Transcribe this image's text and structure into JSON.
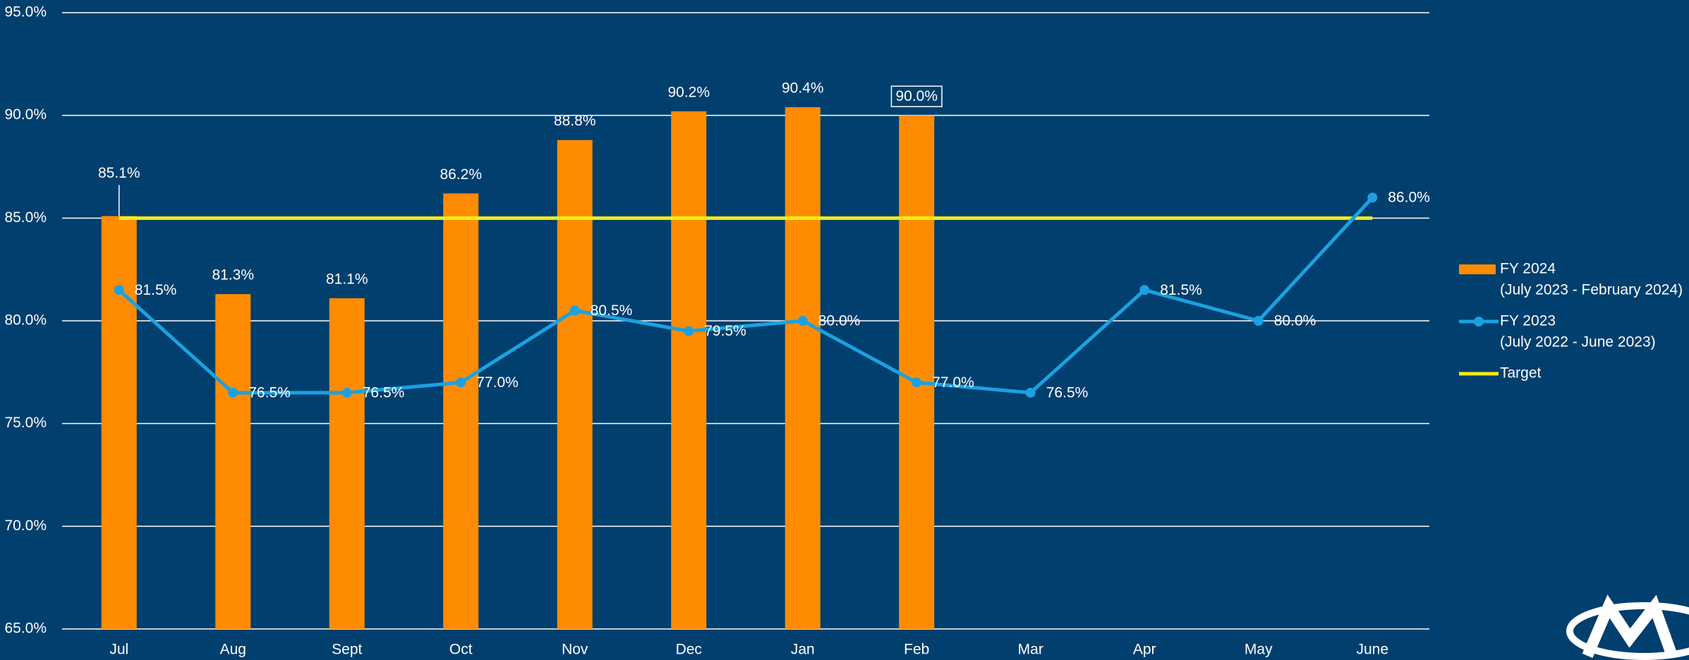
{
  "chart_data": {
    "type": "bar",
    "categories": [
      "Jul",
      "Aug",
      "Sept",
      "Oct",
      "Nov",
      "Dec",
      "Jan",
      "Feb",
      "Mar",
      "Apr",
      "May",
      "June"
    ],
    "series": [
      {
        "name": "FY 2024",
        "period": "(July 2023 - February 2024)",
        "type": "bar",
        "color": "#ff8c00",
        "values": [
          85.1,
          81.3,
          81.1,
          86.2,
          88.8,
          90.2,
          90.4,
          90.0,
          null,
          null,
          null,
          null
        ],
        "value_labels": [
          "85.1%",
          "81.3%",
          "81.1%",
          "86.2%",
          "88.8%",
          "90.2%",
          "90.4%",
          "90.0%",
          null,
          null,
          null,
          null
        ]
      },
      {
        "name": "FY 2023",
        "period": "(July 2022 - June 2023)",
        "type": "line",
        "color": "#1ba1e2",
        "values": [
          81.5,
          76.5,
          76.5,
          77.0,
          80.5,
          79.5,
          80.0,
          77.0,
          76.5,
          81.5,
          80.0,
          86.0
        ],
        "value_labels": [
          "81.5%",
          "76.5%",
          "76.5%",
          "77.0%",
          "80.5%",
          "79.5%",
          "80.0%",
          "77.0%",
          "76.5%",
          "81.5%",
          "80.0%",
          "86.0%"
        ]
      },
      {
        "name": "Target",
        "type": "target",
        "color": "#f5eb1a",
        "values": [
          85,
          85,
          85,
          85,
          85,
          85,
          85,
          85,
          85,
          85,
          85,
          85
        ]
      }
    ],
    "ylim": [
      65,
      95
    ],
    "yticks": [
      {
        "value": 65,
        "label": "65.0%"
      },
      {
        "value": 70,
        "label": "70.0%"
      },
      {
        "value": 75,
        "label": "75.0%"
      },
      {
        "value": 80,
        "label": "80.0%"
      },
      {
        "value": 85,
        "label": "85.0%"
      },
      {
        "value": 90,
        "label": "90.0%"
      },
      {
        "value": 95,
        "label": "95.0%"
      }
    ],
    "grid": true,
    "legend": "right"
  }
}
